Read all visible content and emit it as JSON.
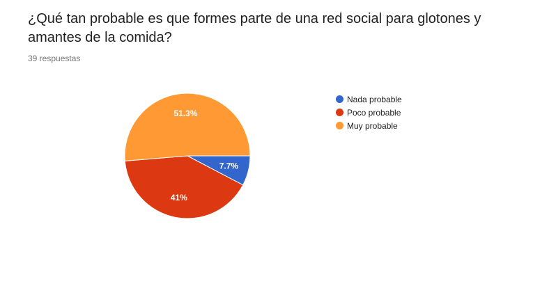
{
  "question": {
    "title": "¿Qué tan probable es que formes parte de una red social para glotones y amantes de la comida?",
    "responses": "39 respuestas"
  },
  "chart_data": {
    "type": "pie",
    "start_angle_deg": 90,
    "direction": "clockwise",
    "slices": [
      {
        "label": "Nada probable",
        "value": 7.7,
        "display": "7.7%",
        "color": "#3366cc"
      },
      {
        "label": "Poco probable",
        "value": 41,
        "display": "41%",
        "color": "#dc3912"
      },
      {
        "label": "Muy probable",
        "value": 51.3,
        "display": "51.3%",
        "color": "#ff9933"
      }
    ],
    "legend_position": "right"
  }
}
